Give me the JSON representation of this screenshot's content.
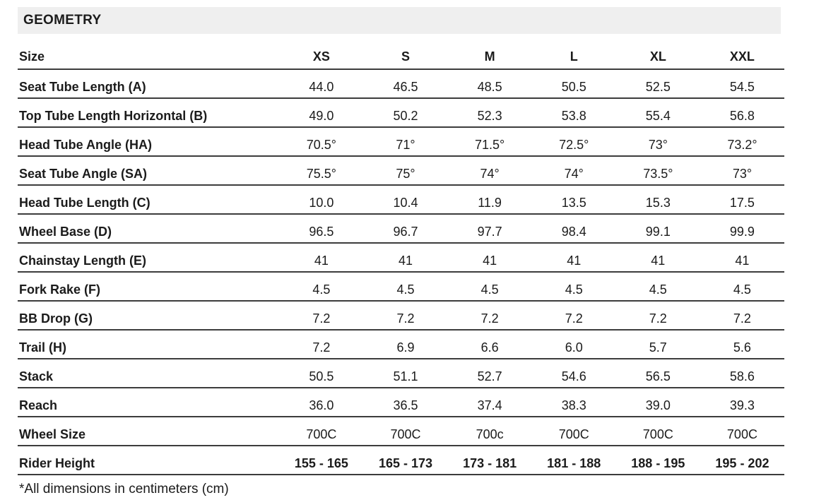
{
  "chart_data": {
    "type": "table",
    "title": "GEOMETRY",
    "row_header_label": "Size",
    "columns": [
      "XS",
      "S",
      "M",
      "L",
      "XL",
      "XXL"
    ],
    "rows": [
      {
        "label": "Seat Tube Length (A)",
        "values": [
          "44.0",
          "46.5",
          "48.5",
          "50.5",
          "52.5",
          "54.5"
        ]
      },
      {
        "label": "Top Tube Length Horizontal (B)",
        "values": [
          "49.0",
          "50.2",
          "52.3",
          "53.8",
          "55.4",
          "56.8"
        ]
      },
      {
        "label": "Head Tube Angle (HA)",
        "values": [
          "70.5°",
          "71°",
          "71.5°",
          "72.5°",
          "73°",
          "73.2°"
        ]
      },
      {
        "label": "Seat Tube Angle (SA)",
        "values": [
          "75.5°",
          "75°",
          "74°",
          "74°",
          "73.5°",
          "73°"
        ]
      },
      {
        "label": "Head Tube Length (C)",
        "values": [
          "10.0",
          "10.4",
          "11.9",
          "13.5",
          "15.3",
          "17.5"
        ]
      },
      {
        "label": "Wheel Base (D)",
        "values": [
          "96.5",
          "96.7",
          "97.7",
          "98.4",
          "99.1",
          "99.9"
        ]
      },
      {
        "label": "Chainstay Length (E)",
        "values": [
          "41",
          "41",
          "41",
          "41",
          "41",
          "41"
        ]
      },
      {
        "label": "Fork Rake (F)",
        "values": [
          "4.5",
          "4.5",
          "4.5",
          "4.5",
          "4.5",
          "4.5"
        ]
      },
      {
        "label": "BB Drop (G)",
        "values": [
          "7.2",
          "7.2",
          "7.2",
          "7.2",
          "7.2",
          "7.2"
        ]
      },
      {
        "label": "Trail (H)",
        "values": [
          "7.2",
          "6.9",
          "6.6",
          "6.0",
          "5.7",
          "5.6"
        ]
      },
      {
        "label": "Stack",
        "values": [
          "50.5",
          "51.1",
          "52.7",
          "54.6",
          "56.5",
          "58.6"
        ]
      },
      {
        "label": "Reach",
        "values": [
          "36.0",
          "36.5",
          "37.4",
          "38.3",
          "39.0",
          "39.3"
        ]
      },
      {
        "label": "Wheel Size",
        "values": [
          "700C",
          "700C",
          "700c",
          "700C",
          "700C",
          "700C"
        ]
      },
      {
        "label": "Rider Height",
        "values": [
          "155 - 165",
          "165 - 173",
          "173 - 181",
          "181 - 188",
          "188 - 195",
          "195 - 202"
        ]
      }
    ],
    "footnote": "*All dimensions in centimeters (cm)"
  },
  "colors": {
    "header_bar_bg": "#efefef",
    "text": "#1b1b1b",
    "rule": "#3c3c3c"
  }
}
